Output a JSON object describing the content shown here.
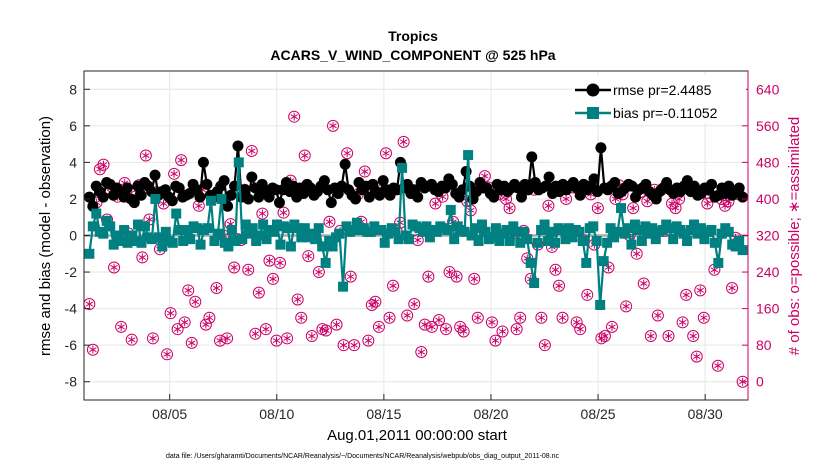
{
  "chart_data": {
    "type": "line",
    "title": "Tropics",
    "subtitle": "ACARS_V_WIND_COMPONENT @ 525 hPa",
    "xlabel": "Aug.01,2011 00:00:00 start",
    "ylabel_left": "rmse and bias (model - observation)",
    "ylabel_right": "# of obs: o=possible; ∗=assimilated",
    "footnote": "data file: /Users/gharamti/Documents/NCAR/Reanalysis/~/Documents/NCAR/Reanalysis/webpub/obs_diag_output_2011-08.nc",
    "xlim": [
      1,
      32
    ],
    "ylim_left": [
      -9,
      9
    ],
    "ylim_right": [
      -40,
      680
    ],
    "x_ticks": [
      5,
      10,
      15,
      20,
      25,
      30
    ],
    "x_tick_labels": [
      "08/05",
      "08/10",
      "08/15",
      "08/20",
      "08/25",
      "08/30"
    ],
    "y_ticks_left": [
      -8,
      -6,
      -4,
      -2,
      0,
      2,
      4,
      6,
      8
    ],
    "y_ticks_right": [
      0,
      80,
      160,
      240,
      320,
      400,
      480,
      560,
      640
    ],
    "colors": {
      "rmse": "#000000",
      "bias": "#008080",
      "obs": "#cc0066",
      "zero_line": "#aaaaaa"
    },
    "legend_position": "top-right",
    "series": [
      {
        "name": "rmse",
        "legend_label": "rmse pr=2.4485",
        "values": [
          2.1,
          1.6,
          2.7,
          2.4,
          2.1,
          2.9,
          2.8,
          2.2,
          2.6,
          2.4,
          2.1,
          2.6,
          2.0,
          1.8,
          2.7,
          2.2,
          2.9,
          2.7,
          2.4,
          3.3,
          2.2,
          2.4,
          2.5,
          2.1,
          1.9,
          2.7,
          2.6,
          2.1,
          2.2,
          2.3,
          2.8,
          2.5,
          2.1,
          4.0,
          2.8,
          2.2,
          2.1,
          2.4,
          2.7,
          3.0,
          1.6,
          2.2,
          2.7,
          4.9,
          2.1,
          2.5,
          2.0,
          3.2,
          2.6,
          2.1,
          2.8,
          2.4,
          2.1,
          2.6,
          2.5,
          1.8,
          2.5,
          2.9,
          2.4,
          2.7,
          2.1,
          2.6,
          2.3,
          2.8,
          2.6,
          2.2,
          2.4,
          2.7,
          3.0,
          2.5,
          1.8,
          2.6,
          2.3,
          2.7,
          3.9,
          2.5,
          2.2,
          2.0,
          2.9,
          2.5,
          2.7,
          2.1,
          2.8,
          2.4,
          2.2,
          3.0,
          2.5,
          2.2,
          2.6,
          2.5,
          4.0,
          2.6,
          2.8,
          2.3,
          2.5,
          2.1,
          2.9,
          2.6,
          2.7,
          2.8,
          2.5,
          2.4,
          2.7,
          2.6,
          3.1,
          2.8,
          2.3,
          2.1,
          2.5,
          3.5,
          2.7,
          2.0,
          2.4,
          2.9,
          2.6,
          2.6,
          2.3,
          2.1,
          2.8,
          2.5,
          2.7,
          2.4,
          2.6,
          2.8,
          2.6,
          2.1,
          2.8,
          2.5,
          4.3,
          2.9,
          2.5,
          2.6,
          2.7,
          3.2,
          2.3,
          2.7,
          2.4,
          2.8,
          2.5,
          2.7,
          2.9,
          2.6,
          2.2,
          2.8,
          2.5,
          2.7,
          3.1,
          2.4,
          4.8,
          2.6,
          2.5,
          2.7,
          2.9,
          2.3,
          2.4,
          2.6,
          2.8,
          2.7,
          2.1,
          2.5,
          2.6,
          2.8,
          2.4,
          2.2,
          2.0,
          2.4,
          2.6,
          2.9,
          2.5,
          2.3,
          2.6,
          2.4,
          2.7,
          3.0,
          2.4,
          2.7,
          2.2,
          2.3,
          2.6,
          2.5,
          2.8,
          2.1,
          2.2,
          2.6,
          2.3,
          2.7,
          2.2,
          2.4,
          2.6,
          2.1
        ]
      },
      {
        "name": "bias",
        "legend_label": "bias pr=-0.11052",
        "values": [
          -1.0,
          0.5,
          1.2,
          0.2,
          0.1,
          0.8,
          0.5,
          -0.5,
          0.0,
          -0.3,
          0.3,
          -0.4,
          0.0,
          -0.3,
          0.6,
          -0.4,
          0.5,
          -0.1,
          -0.2,
          2.0,
          -0.1,
          -0.6,
          0.2,
          -0.3,
          -0.4,
          1.2,
          0.3,
          -0.3,
          0.3,
          -0.2,
          0.5,
          0.4,
          -0.5,
          0.3,
          0.4,
          1.9,
          -0.3,
          0.1,
          2.0,
          -0.4,
          -0.6,
          0.3,
          -0.3,
          4.0,
          -0.2,
          0.6,
          0.1,
          0.4,
          -0.3,
          0.0,
          0.6,
          -0.2,
          0.3,
          0.2,
          0.6,
          -0.5,
          0.5,
          0.4,
          -0.6,
          0.6,
          0.4,
          -0.1,
          0.4,
          -0.1,
          0.1,
          -0.2,
          0.4,
          -0.6,
          -1.5,
          -0.3,
          -0.6,
          -0.1,
          0.1,
          -2.8,
          0.5,
          0.2,
          0.3,
          0.7,
          0.3,
          0.4,
          0.2,
          0.2,
          0.5,
          0.3,
          0.3,
          -0.4,
          0.1,
          0.4,
          0.2,
          -0.2,
          3.7,
          0.0,
          -0.2,
          0.6,
          0.5,
          0.4,
          0.2,
          0.5,
          -0.1,
          0.3,
          0.2,
          0.5,
          0.4,
          0.3,
          1.4,
          -0.2,
          0.5,
          0.3,
          0.2,
          4.4,
          0.0,
          0.4,
          -0.3,
          0.6,
          0.2,
          -0.2,
          -0.1,
          0.4,
          -0.3,
          0.1,
          0.3,
          -0.3,
          0.5,
          0.2,
          -0.4,
          0.2,
          -0.2,
          -1.5,
          -2.6,
          -0.4,
          0.3,
          0.6,
          -0.3,
          0.2,
          -0.4,
          0.4,
          0.3,
          -0.2,
          0.4,
          -0.1,
          0.3,
          0.2,
          -0.3,
          -1.5,
          0.4,
          0.5,
          -0.3,
          -3.8,
          -1.4,
          -0.4,
          0.4,
          -0.1,
          0.2,
          1.5,
          0.1,
          0.4,
          -0.5,
          0.6,
          0.3,
          -0.3,
          0.5,
          0.1,
          0.4,
          -0.2,
          0.2,
          0.3,
          0.6,
          0.4,
          -0.2,
          0.5,
          0.3,
          0.1,
          -0.3,
          0.3,
          0.6,
          0.1,
          0.4,
          -0.2,
          0.2,
          0.3,
          -0.4,
          -1.5,
          0.1,
          0.4,
          0.2,
          -0.5,
          -0.6,
          -0.3,
          -0.8
        ]
      },
      {
        "name": "obs_possible",
        "axis": "right",
        "values": [
          170,
          70,
          392,
          465,
          475,
          355,
          415,
          250,
          405,
          120,
          435,
          325,
          92,
          405,
          430,
          272,
          495,
          355,
          95,
          415,
          290,
          390,
          60,
          150,
          455,
          115,
          485,
          130,
          200,
          85,
          175,
          385,
          420,
          125,
          140,
          405,
          205,
          90,
          320,
          95,
          345,
          250,
          312,
          310,
          420,
          245,
          505,
          105,
          195,
          368,
          115,
          265,
          225,
          90,
          260,
          370,
          95,
          440,
          580,
          180,
          140,
          495,
          275,
          100,
          315,
          240,
          115,
          112,
          350,
          560,
          125,
          330,
          80,
          500,
          230,
          80,
          410,
          350,
          460,
          90,
          168,
          175,
          120,
          420,
          500,
          140,
          210,
          330,
          348,
          525,
          145,
          420,
          170,
          310,
          65,
          125,
          230,
          120,
          390,
          135,
          405,
          115,
          240,
          350,
          230,
          120,
          110,
          395,
          375,
          225,
          140,
          430,
          450,
          425,
          130,
          90,
          410,
          110,
          400,
          380,
          325,
          115,
          140,
          330,
          270,
          225,
          420,
          300,
          140,
          80,
          385,
          295,
          245,
          210,
          140,
          400,
          320,
          425,
          130,
          115,
          310,
          190,
          410,
          300,
          380,
          95,
          100,
          250,
          120,
          400,
          430,
          410,
          165,
          320,
          380,
          280,
          415,
          215,
          395,
          100,
          420,
          145,
          420,
          330,
          100,
          390,
          380,
          400,
          130,
          190,
          420,
          100,
          55,
          200,
          140,
          390,
          405,
          245,
          35,
          400,
          385,
          395,
          205,
          315,
          410,
          0
        ]
      }
    ]
  }
}
